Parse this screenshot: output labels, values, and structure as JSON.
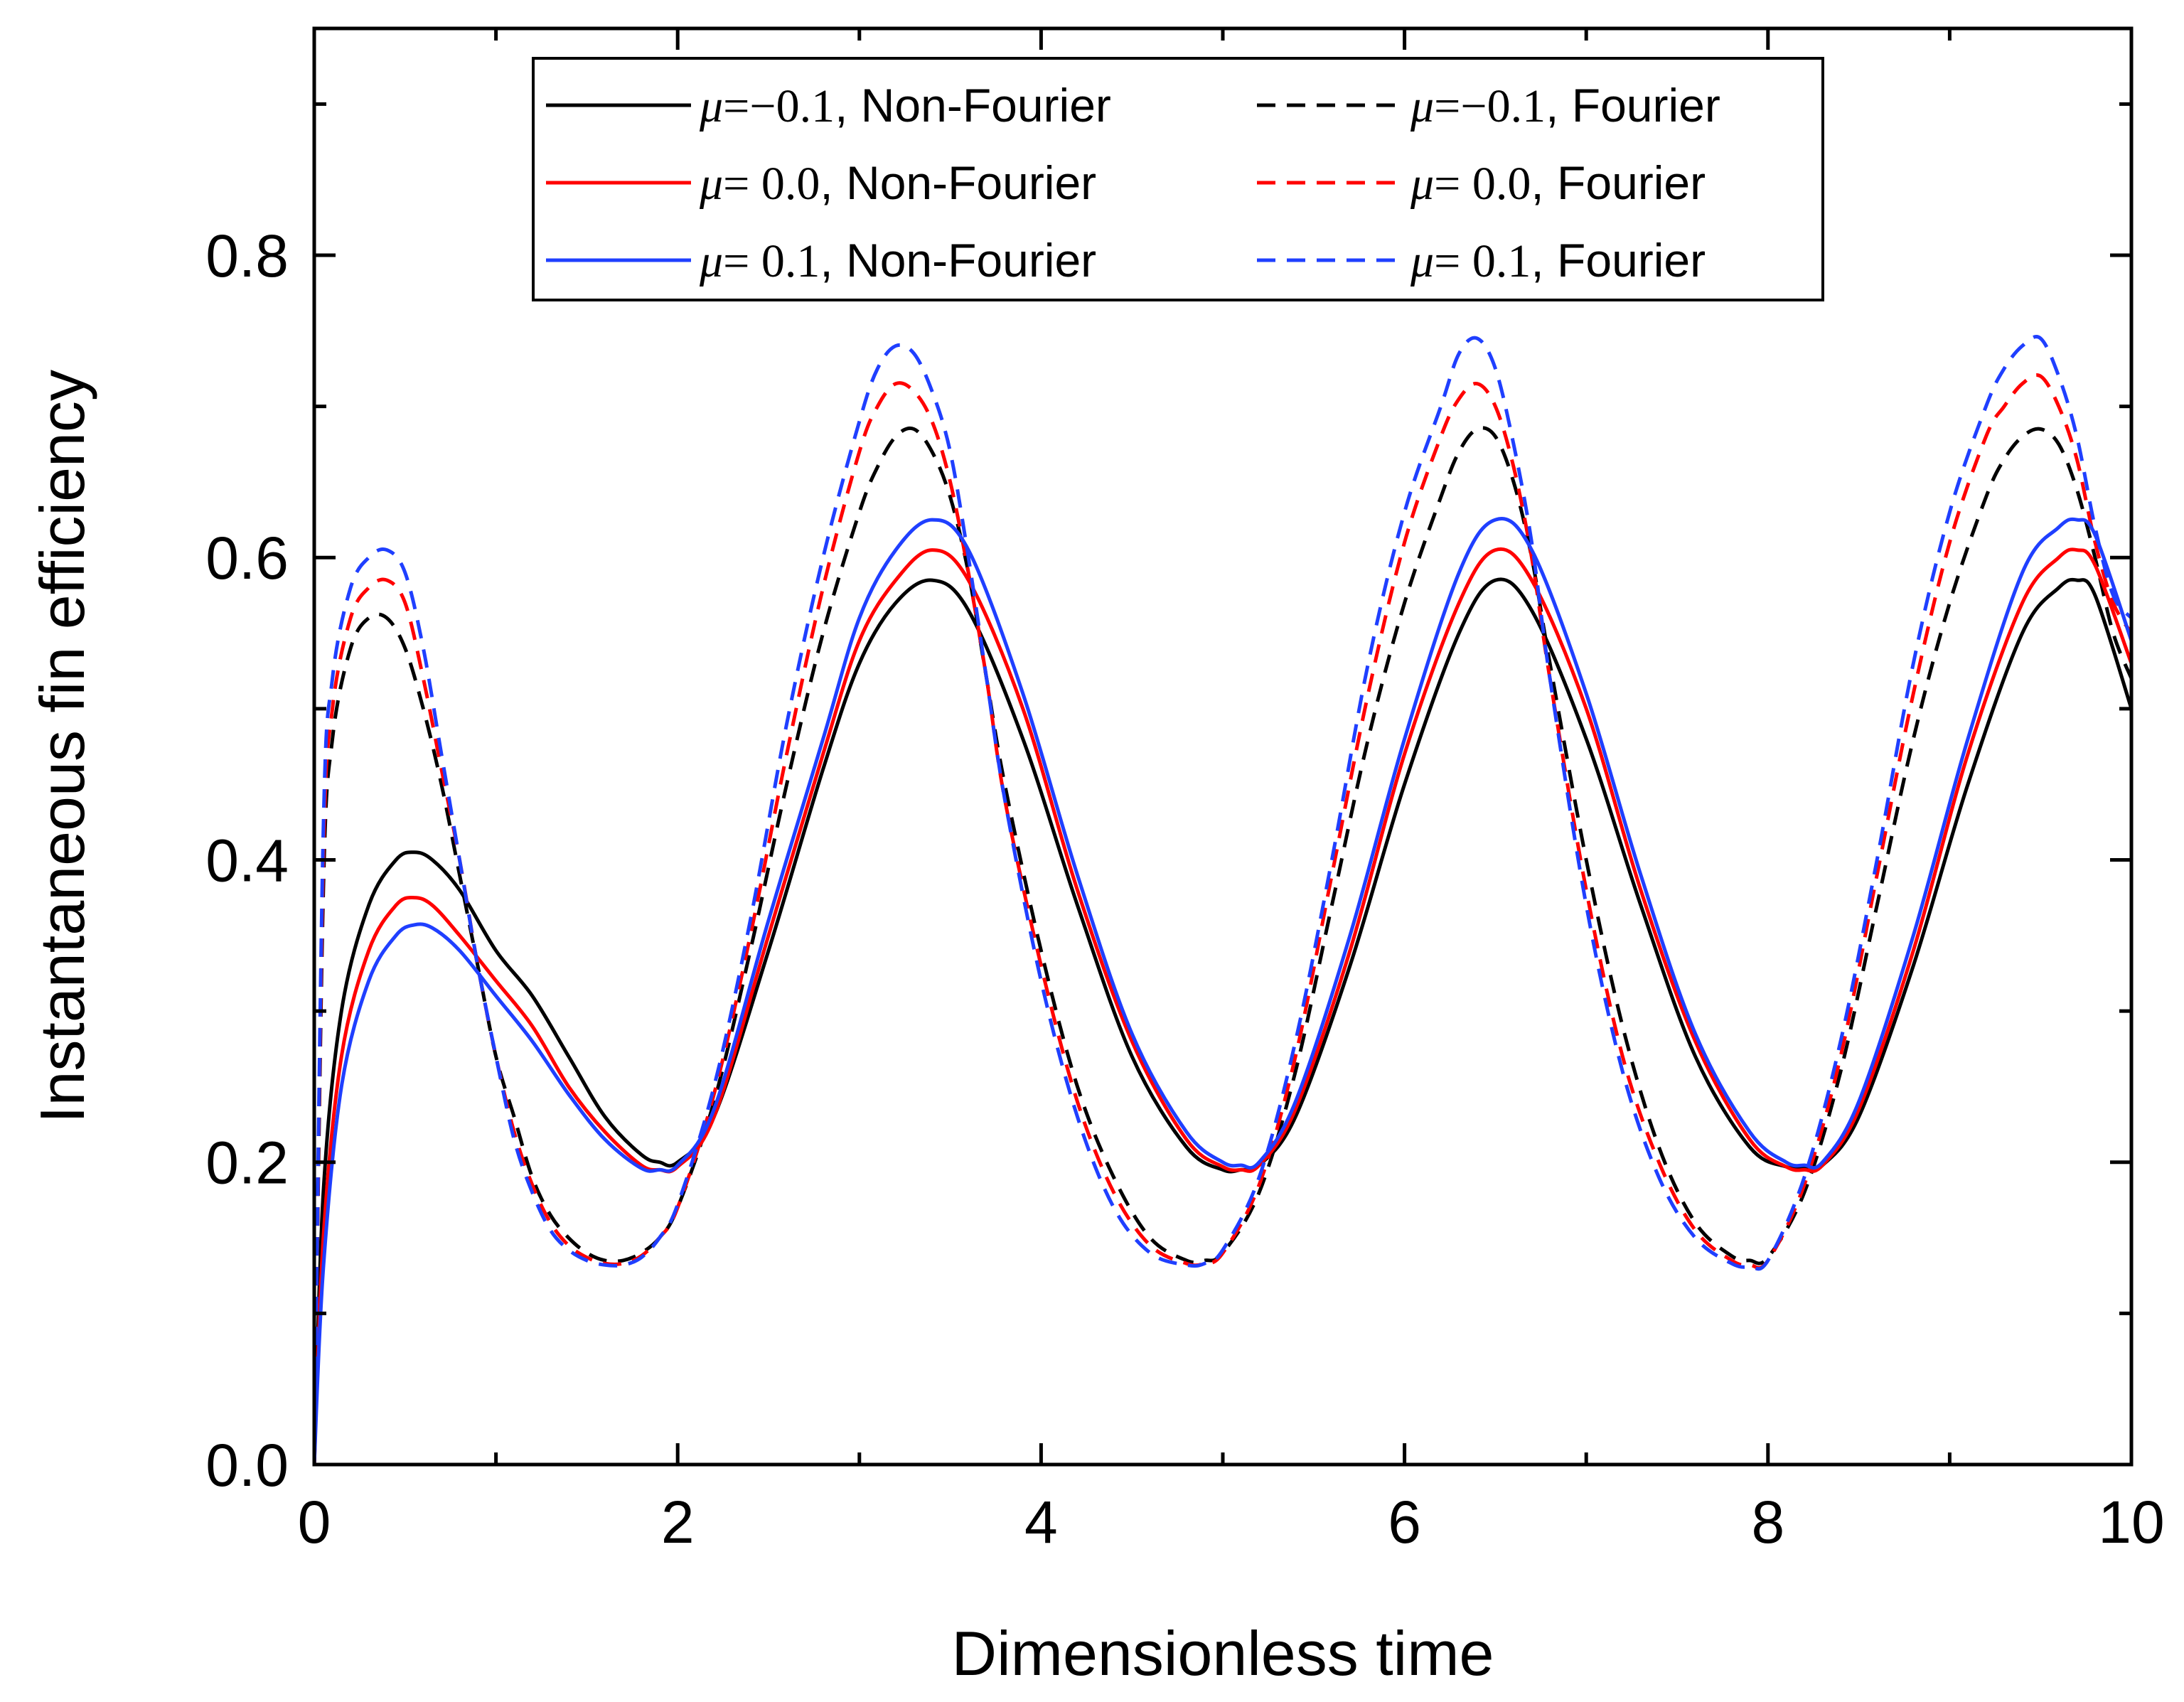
{
  "chart_data": {
    "type": "line",
    "title": "",
    "xlabel": "Dimensionless time",
    "ylabel": "Instantaneous fin efficiency",
    "xlim": [
      0,
      10
    ],
    "ylim": [
      0,
      0.95
    ],
    "xticks": [
      "0",
      "2",
      "4",
      "6",
      "8",
      "10"
    ],
    "yticks": [
      "0.0",
      "0.2",
      "0.4",
      "0.6",
      "0.8"
    ],
    "legend_position": "top",
    "series": [
      {
        "name": "μ=−0.1, Non-Fourier",
        "mu": "μ=−0.1",
        "label": ", Non-Fourier",
        "color": "#000000",
        "dash": false,
        "x": [
          0,
          0.05,
          0.15,
          0.3,
          0.45,
          0.55,
          0.65,
          0.8,
          1.0,
          1.2,
          1.4,
          1.6,
          1.8,
          1.9,
          2.0,
          2.2,
          2.5,
          2.8,
          3.0,
          3.2,
          3.4,
          3.6,
          3.9,
          4.2,
          4.5,
          4.8,
          5.0,
          5.1,
          5.2,
          5.4,
          5.7,
          6.0,
          6.3,
          6.5,
          6.7,
          7.0,
          7.3,
          7.6,
          7.9,
          8.1,
          8.2,
          8.3,
          8.5,
          8.8,
          9.1,
          9.4,
          9.6,
          9.7,
          9.8,
          10.0
        ],
        "y": [
          0.0,
          0.18,
          0.3,
          0.37,
          0.4,
          0.405,
          0.4,
          0.38,
          0.34,
          0.31,
          0.27,
          0.23,
          0.205,
          0.2,
          0.2,
          0.23,
          0.34,
          0.46,
          0.53,
          0.57,
          0.585,
          0.565,
          0.48,
          0.37,
          0.27,
          0.21,
          0.195,
          0.195,
          0.198,
          0.23,
          0.33,
          0.45,
          0.55,
          0.585,
          0.565,
          0.48,
          0.37,
          0.27,
          0.21,
          0.197,
          0.196,
          0.198,
          0.23,
          0.33,
          0.45,
          0.55,
          0.58,
          0.585,
          0.575,
          0.5
        ]
      },
      {
        "name": "μ=−0.1, Fourier",
        "mu": "μ=−0.1",
        "label": ", Fourier",
        "color": "#000000",
        "dash": true,
        "x": [
          0,
          0.05,
          0.1,
          0.2,
          0.3,
          0.4,
          0.5,
          0.6,
          0.7,
          0.8,
          0.9,
          1.0,
          1.1,
          1.2,
          1.3,
          1.4,
          1.5,
          1.6,
          1.7,
          1.8,
          1.9,
          2.0,
          2.2,
          2.4,
          2.6,
          2.8,
          3.0,
          3.1,
          3.2,
          3.3,
          3.4,
          3.5,
          3.6,
          3.7,
          3.8,
          4.0,
          4.2,
          4.4,
          4.6,
          4.8,
          4.9,
          5.0,
          5.2,
          5.4,
          5.6,
          5.8,
          6.0,
          6.2,
          6.3,
          6.4,
          6.5,
          6.6,
          6.7,
          6.8,
          7.0,
          7.2,
          7.4,
          7.6,
          7.8,
          7.9,
          8.0,
          8.2,
          8.4,
          8.6,
          8.8,
          9.0,
          9.2,
          9.3,
          9.4,
          9.5,
          9.6,
          9.7,
          9.8,
          9.9,
          10.0
        ],
        "y": [
          0.0,
          0.38,
          0.48,
          0.54,
          0.56,
          0.56,
          0.54,
          0.5,
          0.45,
          0.39,
          0.33,
          0.27,
          0.23,
          0.19,
          0.165,
          0.15,
          0.14,
          0.135,
          0.135,
          0.14,
          0.15,
          0.17,
          0.24,
          0.34,
          0.45,
          0.55,
          0.63,
          0.66,
          0.68,
          0.685,
          0.67,
          0.64,
          0.59,
          0.52,
          0.45,
          0.34,
          0.25,
          0.19,
          0.15,
          0.135,
          0.135,
          0.14,
          0.18,
          0.26,
          0.37,
          0.48,
          0.57,
          0.64,
          0.67,
          0.685,
          0.68,
          0.65,
          0.6,
          0.53,
          0.4,
          0.29,
          0.21,
          0.16,
          0.138,
          0.135,
          0.137,
          0.18,
          0.26,
          0.37,
          0.48,
          0.57,
          0.64,
          0.665,
          0.68,
          0.685,
          0.675,
          0.645,
          0.6,
          0.55,
          0.52
        ]
      },
      {
        "name": "μ= 0.0, Non-Fourier",
        "mu": "μ= 0.0",
        "label": ", Non-Fourier",
        "color": "#ff0000",
        "dash": false,
        "x": [
          0,
          0.05,
          0.15,
          0.3,
          0.45,
          0.55,
          0.65,
          0.8,
          1.0,
          1.2,
          1.4,
          1.6,
          1.8,
          1.9,
          2.0,
          2.2,
          2.5,
          2.8,
          3.0,
          3.2,
          3.4,
          3.6,
          3.9,
          4.2,
          4.5,
          4.8,
          5.0,
          5.1,
          5.2,
          5.4,
          5.7,
          6.0,
          6.3,
          6.5,
          6.7,
          7.0,
          7.3,
          7.6,
          7.9,
          8.1,
          8.2,
          8.3,
          8.5,
          8.8,
          9.1,
          9.4,
          9.6,
          9.7,
          9.8,
          10.0
        ],
        "y": [
          0.0,
          0.15,
          0.27,
          0.34,
          0.37,
          0.375,
          0.37,
          0.35,
          0.32,
          0.29,
          0.25,
          0.22,
          0.198,
          0.195,
          0.197,
          0.23,
          0.35,
          0.47,
          0.545,
          0.585,
          0.605,
          0.585,
          0.5,
          0.38,
          0.28,
          0.215,
          0.197,
          0.195,
          0.198,
          0.235,
          0.34,
          0.47,
          0.57,
          0.605,
          0.585,
          0.5,
          0.38,
          0.28,
          0.215,
          0.197,
          0.195,
          0.198,
          0.235,
          0.34,
          0.47,
          0.57,
          0.6,
          0.605,
          0.595,
          0.53
        ]
      },
      {
        "name": "μ= 0.0, Fourier",
        "mu": "μ= 0.0",
        "label": ", Fourier",
        "color": "#ff0000",
        "dash": true,
        "x": [
          0,
          0.05,
          0.1,
          0.2,
          0.3,
          0.4,
          0.5,
          0.6,
          0.7,
          0.8,
          0.9,
          1.0,
          1.1,
          1.2,
          1.3,
          1.4,
          1.5,
          1.6,
          1.7,
          1.8,
          1.9,
          2.0,
          2.2,
          2.4,
          2.6,
          2.8,
          3.0,
          3.1,
          3.2,
          3.3,
          3.4,
          3.5,
          3.6,
          3.7,
          3.8,
          4.0,
          4.2,
          4.4,
          4.6,
          4.8,
          4.9,
          5.0,
          5.2,
          5.4,
          5.6,
          5.8,
          6.0,
          6.2,
          6.3,
          6.4,
          6.5,
          6.6,
          6.7,
          6.8,
          7.0,
          7.2,
          7.4,
          7.6,
          7.8,
          7.9,
          8.0,
          8.2,
          8.4,
          8.6,
          8.8,
          9.0,
          9.2,
          9.3,
          9.4,
          9.5,
          9.6,
          9.7,
          9.8,
          9.9,
          10.0
        ],
        "y": [
          0.0,
          0.4,
          0.5,
          0.56,
          0.58,
          0.585,
          0.57,
          0.52,
          0.46,
          0.4,
          0.33,
          0.27,
          0.22,
          0.185,
          0.16,
          0.145,
          0.137,
          0.133,
          0.133,
          0.138,
          0.15,
          0.17,
          0.245,
          0.35,
          0.47,
          0.58,
          0.67,
          0.7,
          0.715,
          0.71,
          0.69,
          0.65,
          0.59,
          0.52,
          0.44,
          0.33,
          0.24,
          0.18,
          0.145,
          0.133,
          0.133,
          0.14,
          0.185,
          0.27,
          0.39,
          0.51,
          0.61,
          0.68,
          0.705,
          0.715,
          0.7,
          0.66,
          0.6,
          0.52,
          0.38,
          0.27,
          0.2,
          0.155,
          0.135,
          0.132,
          0.135,
          0.185,
          0.27,
          0.39,
          0.51,
          0.61,
          0.68,
          0.7,
          0.715,
          0.72,
          0.7,
          0.665,
          0.61,
          0.57,
          0.55
        ]
      },
      {
        "name": "μ= 0.1, Non-Fourier",
        "mu": "μ= 0.1",
        "label": ", Non-Fourier",
        "color": "#1f3fff",
        "dash": false,
        "x": [
          0,
          0.05,
          0.15,
          0.3,
          0.45,
          0.55,
          0.65,
          0.8,
          1.0,
          1.2,
          1.4,
          1.6,
          1.8,
          1.9,
          2.0,
          2.2,
          2.5,
          2.8,
          3.0,
          3.2,
          3.4,
          3.6,
          3.9,
          4.2,
          4.5,
          4.8,
          5.0,
          5.1,
          5.2,
          5.4,
          5.7,
          6.0,
          6.3,
          6.5,
          6.7,
          7.0,
          7.3,
          7.6,
          7.9,
          8.1,
          8.2,
          8.3,
          8.5,
          8.8,
          9.1,
          9.4,
          9.6,
          9.7,
          9.8,
          10.0
        ],
        "y": [
          0.0,
          0.13,
          0.25,
          0.32,
          0.35,
          0.357,
          0.355,
          0.34,
          0.31,
          0.28,
          0.245,
          0.215,
          0.196,
          0.195,
          0.198,
          0.235,
          0.36,
          0.48,
          0.56,
          0.605,
          0.625,
          0.605,
          0.51,
          0.39,
          0.285,
          0.22,
          0.2,
          0.198,
          0.2,
          0.24,
          0.35,
          0.48,
          0.59,
          0.625,
          0.605,
          0.51,
          0.39,
          0.285,
          0.22,
          0.2,
          0.198,
          0.2,
          0.24,
          0.35,
          0.48,
          0.59,
          0.62,
          0.625,
          0.615,
          0.545
        ]
      },
      {
        "name": "μ= 0.1, Fourier",
        "mu": "μ= 0.1",
        "label": ", Fourier",
        "color": "#1f3fff",
        "dash": true,
        "x": [
          0,
          0.05,
          0.1,
          0.2,
          0.3,
          0.4,
          0.5,
          0.6,
          0.7,
          0.8,
          0.9,
          1.0,
          1.1,
          1.2,
          1.3,
          1.4,
          1.5,
          1.6,
          1.7,
          1.8,
          1.9,
          2.0,
          2.2,
          2.4,
          2.6,
          2.8,
          3.0,
          3.1,
          3.2,
          3.3,
          3.4,
          3.5,
          3.6,
          3.7,
          3.8,
          4.0,
          4.2,
          4.4,
          4.6,
          4.8,
          4.9,
          5.0,
          5.2,
          5.4,
          5.6,
          5.8,
          6.0,
          6.2,
          6.3,
          6.4,
          6.5,
          6.6,
          6.7,
          6.8,
          7.0,
          7.2,
          7.4,
          7.6,
          7.8,
          7.9,
          8.0,
          8.2,
          8.4,
          8.6,
          8.8,
          9.0,
          9.2,
          9.3,
          9.4,
          9.5,
          9.6,
          9.7,
          9.8,
          9.9,
          10.0
        ],
        "y": [
          0.0,
          0.42,
          0.52,
          0.58,
          0.6,
          0.605,
          0.59,
          0.54,
          0.47,
          0.4,
          0.33,
          0.27,
          0.215,
          0.18,
          0.155,
          0.142,
          0.135,
          0.132,
          0.132,
          0.137,
          0.15,
          0.172,
          0.25,
          0.36,
          0.49,
          0.6,
          0.69,
          0.725,
          0.74,
          0.735,
          0.71,
          0.67,
          0.6,
          0.52,
          0.44,
          0.32,
          0.23,
          0.17,
          0.14,
          0.132,
          0.133,
          0.142,
          0.19,
          0.28,
          0.4,
          0.53,
          0.63,
          0.7,
          0.735,
          0.745,
          0.725,
          0.675,
          0.61,
          0.52,
          0.37,
          0.26,
          0.19,
          0.15,
          0.133,
          0.131,
          0.135,
          0.19,
          0.28,
          0.4,
          0.53,
          0.63,
          0.7,
          0.725,
          0.74,
          0.745,
          0.72,
          0.68,
          0.62,
          0.575,
          0.56
        ]
      }
    ]
  }
}
